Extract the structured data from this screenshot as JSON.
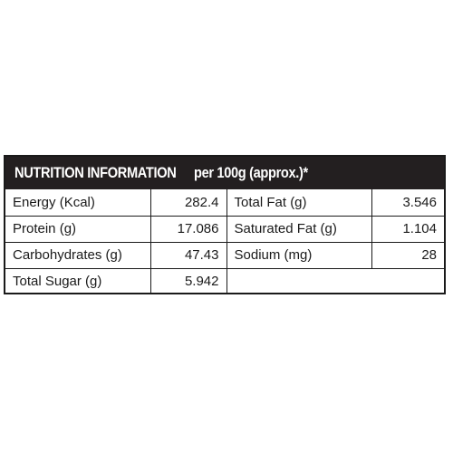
{
  "panel": {
    "title": "NUTRITION INFORMATION",
    "subtitle": "per 100g (approx.)*"
  },
  "rows": [
    {
      "label1": "Energy (Kcal)",
      "value1": "282.4",
      "label2": "Total Fat (g)",
      "value2": "3.546"
    },
    {
      "label1": "Protein (g)",
      "value1": "17.086",
      "label2": "Saturated Fat (g)",
      "value2": "1.104"
    },
    {
      "label1": "Carbohydrates (g)",
      "value1": "47.43",
      "label2": "Sodium (mg)",
      "value2": "28"
    },
    {
      "label1": "Total Sugar (g)",
      "value1": "5.942",
      "label2": "",
      "value2": ""
    }
  ],
  "colors": {
    "header_bg": "#231f20",
    "header_text": "#ffffff",
    "border": "#1a1a1a"
  }
}
